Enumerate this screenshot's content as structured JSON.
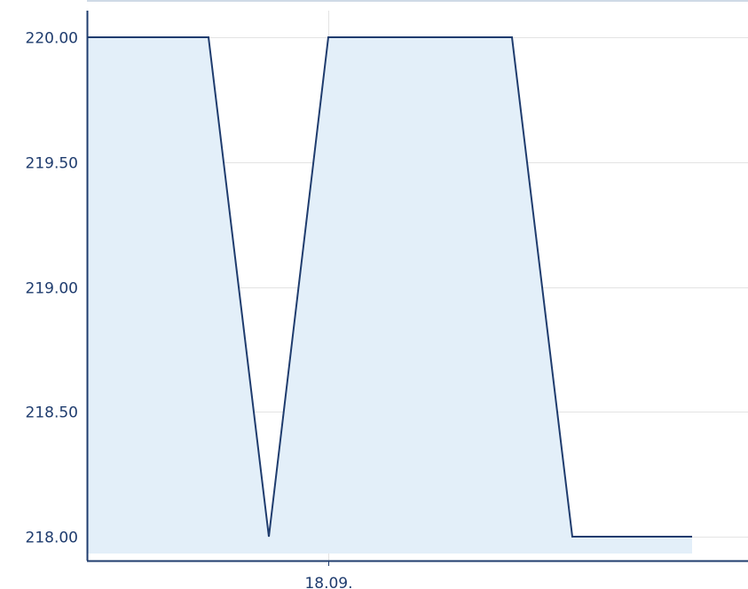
{
  "chart_data": {
    "type": "area",
    "title": "",
    "xlabel": "",
    "ylabel": "",
    "x_tick_labels": [
      "18.09."
    ],
    "y_tick_labels": [
      "218.00",
      "218.50",
      "219.00",
      "219.50",
      "220.00"
    ],
    "ylim": [
      218.0,
      220.0
    ],
    "grid": true,
    "legend": "none",
    "series": [
      {
        "values": [
          220.0,
          220.0,
          218.0,
          220.0,
          220.0,
          218.0,
          218.0
        ]
      }
    ],
    "colors": {
      "line": "#1f3c6e",
      "fill": "#e3eff9",
      "grid": "#e3e3e3",
      "axis": "#1f3c6e",
      "tick_text": "#1f3c6e"
    }
  }
}
